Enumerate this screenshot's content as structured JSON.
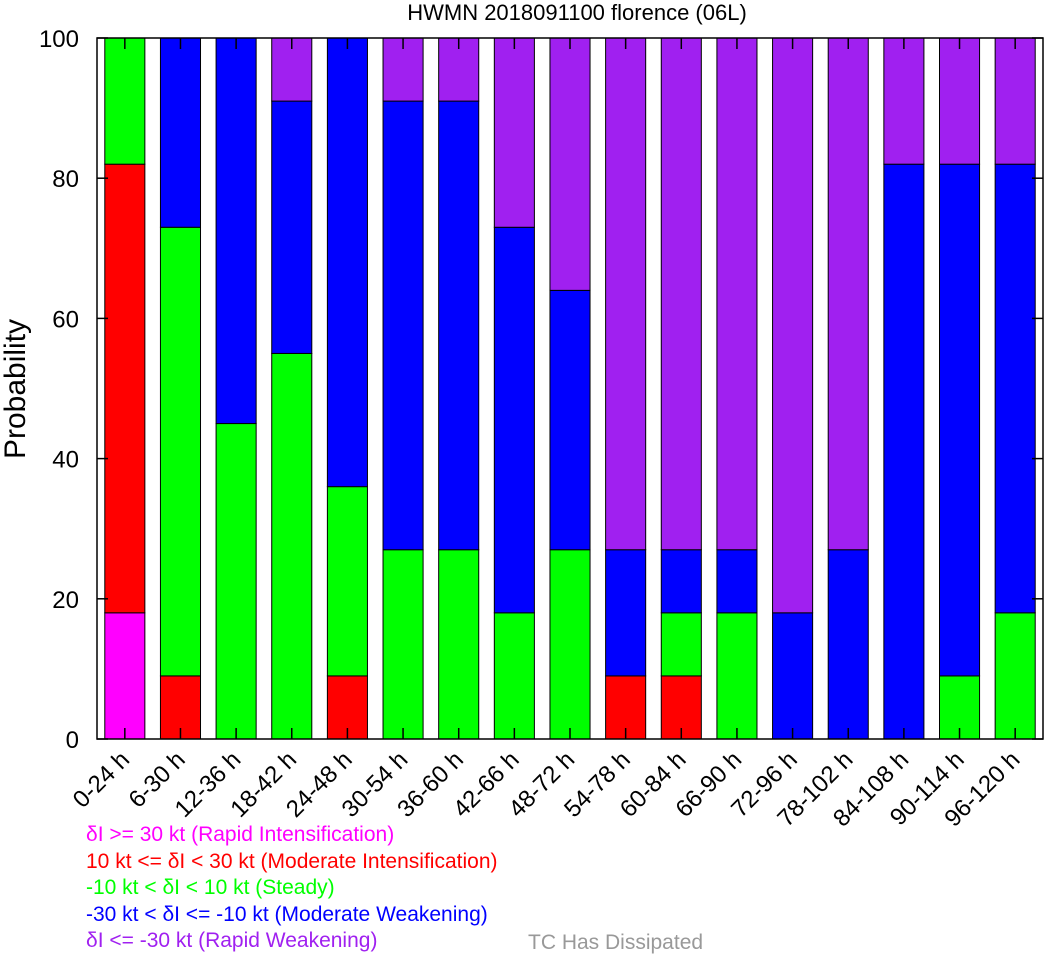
{
  "chart_data": {
    "type": "bar",
    "stacked": true,
    "title": "HWMN 2018091100 florence (06L)",
    "xlabel": "",
    "ylabel": "Probability",
    "ylim": [
      0,
      100
    ],
    "yticks": [
      0,
      20,
      40,
      60,
      80,
      100
    ],
    "grid": false,
    "categories": [
      "0-24 h",
      "6-30 h",
      "12-36 h",
      "18-42 h",
      "24-48 h",
      "30-54 h",
      "36-60 h",
      "42-66 h",
      "48-72 h",
      "54-78 h",
      "60-84 h",
      "66-90 h",
      "72-96 h",
      "78-102 h",
      "84-108 h",
      "90-114 h",
      "96-120 h"
    ],
    "series": [
      {
        "name": "δI >= 30 kt (Rapid Intensification)",
        "color": "#ff00ff",
        "values": [
          18,
          0,
          0,
          0,
          0,
          0,
          0,
          0,
          0,
          0,
          0,
          0,
          0,
          0,
          0,
          0,
          0
        ]
      },
      {
        "name": "10 kt <= δI < 30 kt (Moderate Intensification)",
        "color": "#ff0000",
        "values": [
          64,
          9,
          0,
          0,
          9,
          0,
          0,
          0,
          0,
          9,
          9,
          0,
          0,
          0,
          0,
          0,
          0
        ]
      },
      {
        "name": "-10 kt < δI < 10 kt (Steady)",
        "color": "#00ff00",
        "values": [
          18,
          64,
          45,
          55,
          27,
          27,
          27,
          18,
          27,
          0,
          9,
          18,
          0,
          0,
          0,
          9,
          18
        ]
      },
      {
        "name": "-30 kt < δI <= -10 kt (Moderate Weakening)",
        "color": "#0000ff",
        "values": [
          0,
          27,
          55,
          36,
          64,
          64,
          64,
          55,
          37,
          18,
          9,
          9,
          18,
          27,
          82,
          73,
          64
        ]
      },
      {
        "name": "δI <= -30 kt (Rapid Weakening)",
        "color": "#a020f0",
        "values": [
          0,
          0,
          0,
          9,
          0,
          9,
          9,
          27,
          36,
          73,
          73,
          73,
          82,
          73,
          18,
          18,
          18
        ]
      }
    ],
    "legend_placement": "bottom-left",
    "note": {
      "text": "TC Has Dissipated",
      "color": "#999999"
    }
  }
}
